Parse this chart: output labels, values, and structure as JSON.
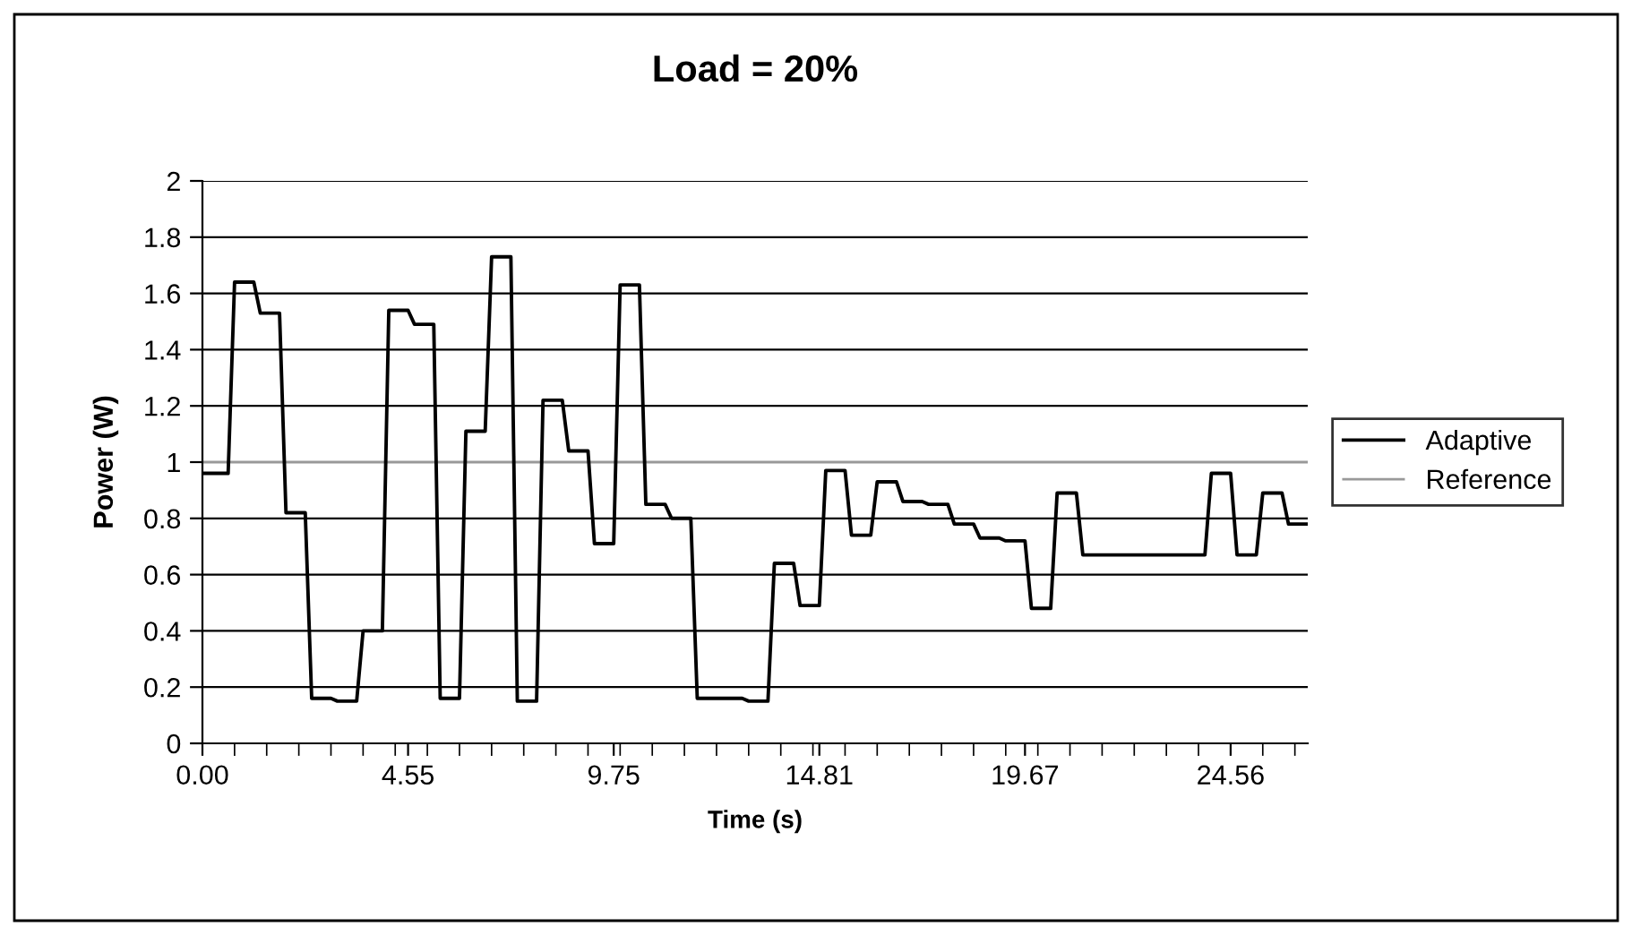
{
  "chart_data": {
    "type": "line",
    "title": "Load = 20%",
    "xlabel": "Time (s)",
    "ylabel": "Power (W)",
    "categories": [
      "0.00",
      null,
      null,
      null,
      null,
      null,
      null,
      null,
      null,
      null,
      null,
      null,
      null,
      null,
      null,
      null,
      null,
      null,
      null,
      null,
      null,
      null,
      null,
      null,
      null,
      null,
      null,
      null,
      null,
      null,
      null,
      null,
      "4.55",
      null,
      null,
      null,
      null,
      null,
      null,
      null,
      null,
      null,
      null,
      null,
      null,
      null,
      null,
      null,
      null,
      null,
      null,
      null,
      null,
      null,
      null,
      null,
      null,
      null,
      null,
      null,
      null,
      null,
      null,
      null,
      "9.75",
      null,
      null,
      null,
      null,
      null,
      null,
      null,
      null,
      null,
      null,
      null,
      null,
      null,
      null,
      null,
      null,
      null,
      null,
      null,
      null,
      null,
      null,
      null,
      null,
      null,
      null,
      null,
      null,
      null,
      null,
      null,
      "14.81",
      null,
      null,
      null,
      null,
      null,
      null,
      null,
      null,
      null,
      null,
      null,
      null,
      null,
      null,
      null,
      null,
      null,
      null,
      null,
      null,
      null,
      null,
      null,
      null,
      null,
      null,
      null,
      null,
      null,
      null,
      null,
      "19.67",
      null,
      null,
      null,
      null,
      null,
      null,
      null,
      null,
      null,
      null,
      null,
      null,
      null,
      null,
      null,
      null,
      null,
      null,
      null,
      null,
      null,
      null,
      null,
      null,
      null,
      null,
      null,
      null,
      null,
      null,
      null,
      "24.56",
      null,
      null,
      null,
      null,
      null,
      null,
      null,
      null,
      null,
      null,
      null,
      null
    ],
    "series": [
      {
        "name": "Adaptive",
        "color": "#000000",
        "values": [
          0.96,
          0.96,
          0.96,
          0.96,
          0.96,
          1.64,
          1.64,
          1.64,
          1.64,
          1.53,
          1.53,
          1.53,
          1.53,
          0.82,
          0.82,
          0.82,
          0.82,
          0.16,
          0.16,
          0.16,
          0.16,
          0.15,
          0.15,
          0.15,
          0.15,
          0.4,
          0.4,
          0.4,
          0.4,
          1.54,
          1.54,
          1.54,
          1.54,
          1.49,
          1.49,
          1.49,
          1.49,
          0.16,
          0.16,
          0.16,
          0.16,
          1.11,
          1.11,
          1.11,
          1.11,
          1.73,
          1.73,
          1.73,
          1.73,
          0.15,
          0.15,
          0.15,
          0.15,
          1.22,
          1.22,
          1.22,
          1.22,
          1.04,
          1.04,
          1.04,
          1.04,
          0.71,
          0.71,
          0.71,
          0.71,
          1.63,
          1.63,
          1.63,
          1.63,
          0.85,
          0.85,
          0.85,
          0.85,
          0.8,
          0.8,
          0.8,
          0.8,
          0.16,
          0.16,
          0.16,
          0.16,
          0.16,
          0.16,
          0.16,
          0.16,
          0.15,
          0.15,
          0.15,
          0.15,
          0.64,
          0.64,
          0.64,
          0.64,
          0.49,
          0.49,
          0.49,
          0.49,
          0.97,
          0.97,
          0.97,
          0.97,
          0.74,
          0.74,
          0.74,
          0.74,
          0.93,
          0.93,
          0.93,
          0.93,
          0.86,
          0.86,
          0.86,
          0.86,
          0.85,
          0.85,
          0.85,
          0.85,
          0.78,
          0.78,
          0.78,
          0.78,
          0.73,
          0.73,
          0.73,
          0.73,
          0.72,
          0.72,
          0.72,
          0.72,
          0.48,
          0.48,
          0.48,
          0.48,
          0.89,
          0.89,
          0.89,
          0.89,
          0.67,
          0.67,
          0.67,
          0.67,
          0.67,
          0.67,
          0.67,
          0.67,
          0.67,
          0.67,
          0.67,
          0.67,
          0.67,
          0.67,
          0.67,
          0.67,
          0.67,
          0.67,
          0.67,
          0.67,
          0.96,
          0.96,
          0.96,
          0.96,
          0.67,
          0.67,
          0.67,
          0.67,
          0.89,
          0.89,
          0.89,
          0.89,
          0.78,
          0.78,
          0.78,
          0.78
        ]
      },
      {
        "name": "Reference",
        "color": "#999999",
        "values": [
          1,
          1,
          1,
          1,
          1,
          1,
          1,
          1,
          1,
          1,
          1,
          1,
          1,
          1,
          1,
          1,
          1,
          1,
          1,
          1,
          1,
          1,
          1,
          1,
          1,
          1,
          1,
          1,
          1,
          1,
          1,
          1,
          1,
          1,
          1,
          1,
          1,
          1,
          1,
          1,
          1,
          1,
          1,
          1,
          1,
          1,
          1,
          1,
          1,
          1,
          1,
          1,
          1,
          1,
          1,
          1,
          1,
          1,
          1,
          1,
          1,
          1,
          1,
          1,
          1,
          1,
          1,
          1,
          1,
          1,
          1,
          1,
          1,
          1,
          1,
          1,
          1,
          1,
          1,
          1,
          1,
          1,
          1,
          1,
          1,
          1,
          1,
          1,
          1,
          1,
          1,
          1,
          1,
          1,
          1,
          1,
          1,
          1,
          1,
          1,
          1,
          1,
          1,
          1,
          1,
          1,
          1,
          1,
          1,
          1,
          1,
          1,
          1,
          1,
          1,
          1,
          1,
          1,
          1,
          1,
          1,
          1,
          1,
          1,
          1,
          1,
          1,
          1,
          1,
          1,
          1,
          1,
          1,
          1,
          1,
          1,
          1,
          1,
          1,
          1,
          1,
          1,
          1,
          1,
          1,
          1,
          1,
          1,
          1,
          1,
          1,
          1,
          1,
          1,
          1,
          1,
          1,
          1,
          1,
          1,
          1,
          1,
          1,
          1,
          1,
          1,
          1,
          1,
          1,
          1,
          1,
          1,
          1
        ]
      }
    ],
    "ylim": [
      0,
      2
    ],
    "yticks": [
      0,
      0.2,
      0.4,
      0.6,
      0.8,
      1,
      1.2,
      1.4,
      1.6,
      1.8,
      2
    ],
    "grid": "y",
    "legend": "right",
    "marker": "none",
    "line_style": "solid"
  }
}
